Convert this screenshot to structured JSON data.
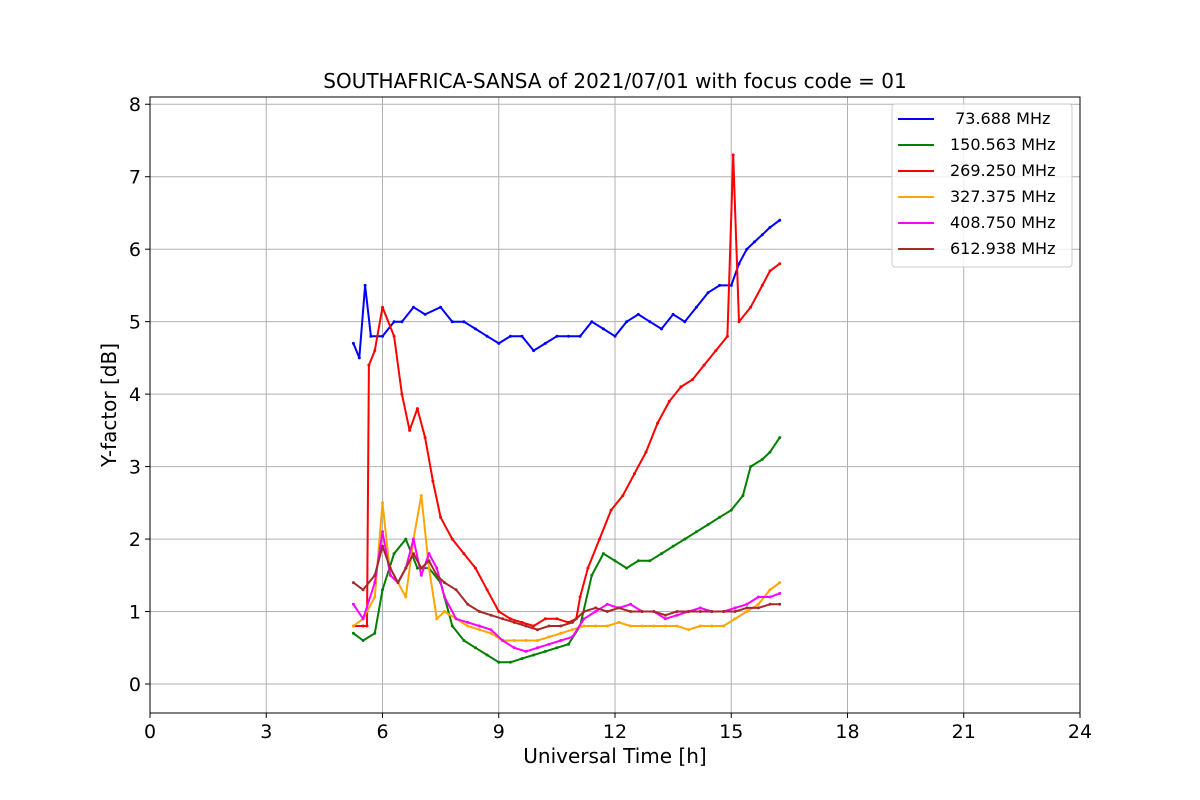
{
  "chart_data": {
    "type": "line",
    "title": "SOUTHAFRICA-SANSA of 2021/07/01 with focus code = 01",
    "xlabel": "Universal Time [h]",
    "ylabel": "Y-factor [dB]",
    "xlim": [
      0,
      24
    ],
    "ylim": [
      -0.4,
      8.1
    ],
    "xticks": [
      0,
      3,
      6,
      9,
      12,
      15,
      18,
      21,
      24
    ],
    "yticks": [
      0,
      1,
      2,
      3,
      4,
      5,
      6,
      7,
      8
    ],
    "grid": true,
    "legend_position": "top-right",
    "series": [
      {
        "name": " 73.688 MHz",
        "color": "#0000ff",
        "x": [
          5.25,
          5.4,
          5.55,
          5.7,
          6.0,
          6.3,
          6.5,
          6.8,
          7.1,
          7.5,
          7.8,
          8.1,
          8.4,
          8.7,
          9.0,
          9.3,
          9.6,
          9.9,
          10.2,
          10.5,
          10.8,
          11.1,
          11.4,
          11.7,
          12.0,
          12.3,
          12.6,
          12.9,
          13.2,
          13.5,
          13.8,
          14.1,
          14.4,
          14.7,
          15.0,
          15.2,
          15.4,
          15.6,
          15.8,
          16.0,
          16.25
        ],
        "y": [
          4.7,
          4.5,
          5.5,
          4.8,
          4.8,
          5.0,
          5.0,
          5.2,
          5.1,
          5.2,
          5.0,
          5.0,
          4.9,
          4.8,
          4.7,
          4.8,
          4.8,
          4.6,
          4.7,
          4.8,
          4.8,
          4.8,
          5.0,
          4.9,
          4.8,
          5.0,
          5.1,
          5.0,
          4.9,
          5.1,
          5.0,
          5.2,
          5.4,
          5.5,
          5.5,
          5.8,
          6.0,
          6.1,
          6.2,
          6.3,
          6.4
        ]
      },
      {
        "name": "150.563 MHz",
        "color": "#008000",
        "x": [
          5.25,
          5.5,
          5.8,
          6.0,
          6.3,
          6.6,
          6.9,
          7.2,
          7.5,
          7.8,
          8.1,
          8.4,
          8.7,
          9.0,
          9.3,
          9.6,
          9.9,
          10.2,
          10.5,
          10.8,
          11.1,
          11.4,
          11.7,
          12.0,
          12.3,
          12.6,
          12.9,
          13.2,
          13.5,
          13.8,
          14.1,
          14.4,
          14.7,
          15.0,
          15.3,
          15.5,
          15.8,
          16.0,
          16.25
        ],
        "y": [
          0.7,
          0.6,
          0.7,
          1.3,
          1.8,
          2.0,
          1.6,
          1.6,
          1.4,
          0.8,
          0.6,
          0.5,
          0.4,
          0.3,
          0.3,
          0.35,
          0.4,
          0.45,
          0.5,
          0.55,
          0.8,
          1.5,
          1.8,
          1.7,
          1.6,
          1.7,
          1.7,
          1.8,
          1.9,
          2.0,
          2.1,
          2.2,
          2.3,
          2.4,
          2.6,
          3.0,
          3.1,
          3.2,
          3.4
        ]
      },
      {
        "name": "269.250 MHz",
        "color": "#ff0000",
        "x": [
          5.25,
          5.5,
          5.6,
          5.65,
          5.8,
          6.0,
          6.3,
          6.5,
          6.7,
          6.9,
          7.1,
          7.3,
          7.5,
          7.8,
          8.1,
          8.4,
          8.7,
          9.0,
          9.3,
          9.6,
          9.9,
          10.2,
          10.5,
          10.8,
          11.0,
          11.1,
          11.3,
          11.6,
          11.9,
          12.2,
          12.5,
          12.8,
          13.1,
          13.4,
          13.7,
          14.0,
          14.3,
          14.6,
          14.9,
          15.05,
          15.2,
          15.5,
          15.8,
          16.0,
          16.25
        ],
        "y": [
          0.8,
          0.8,
          0.8,
          4.4,
          4.6,
          5.2,
          4.8,
          4.0,
          3.5,
          3.8,
          3.4,
          2.8,
          2.3,
          2.0,
          1.8,
          1.6,
          1.3,
          1.0,
          0.9,
          0.85,
          0.8,
          0.9,
          0.9,
          0.85,
          0.9,
          1.2,
          1.6,
          2.0,
          2.4,
          2.6,
          2.9,
          3.2,
          3.6,
          3.9,
          4.1,
          4.2,
          4.4,
          4.6,
          4.8,
          7.3,
          5.0,
          5.2,
          5.5,
          5.7,
          5.8
        ]
      },
      {
        "name": "327.375 MHz",
        "color": "#ffa500",
        "x": [
          5.25,
          5.5,
          5.8,
          6.0,
          6.2,
          6.4,
          6.6,
          6.8,
          7.0,
          7.2,
          7.4,
          7.6,
          7.9,
          8.2,
          8.5,
          8.8,
          9.1,
          9.4,
          9.7,
          10.0,
          10.3,
          10.6,
          10.9,
          11.2,
          11.5,
          11.8,
          12.1,
          12.4,
          12.7,
          13.0,
          13.3,
          13.6,
          13.9,
          14.2,
          14.5,
          14.8,
          15.1,
          15.4,
          15.7,
          16.0,
          16.25
        ],
        "y": [
          0.8,
          0.9,
          1.2,
          2.5,
          1.5,
          1.4,
          1.2,
          2.0,
          2.6,
          1.6,
          0.9,
          1.0,
          0.9,
          0.8,
          0.75,
          0.7,
          0.6,
          0.6,
          0.6,
          0.6,
          0.65,
          0.7,
          0.75,
          0.8,
          0.8,
          0.8,
          0.85,
          0.8,
          0.8,
          0.8,
          0.8,
          0.8,
          0.75,
          0.8,
          0.8,
          0.8,
          0.9,
          1.0,
          1.1,
          1.3,
          1.4
        ]
      },
      {
        "name": "408.750 MHz",
        "color": "#ff00ff",
        "x": [
          5.25,
          5.5,
          5.8,
          6.0,
          6.2,
          6.4,
          6.6,
          6.8,
          7.0,
          7.2,
          7.4,
          7.6,
          7.9,
          8.2,
          8.5,
          8.8,
          9.1,
          9.4,
          9.7,
          10.0,
          10.3,
          10.6,
          10.9,
          11.2,
          11.5,
          11.8,
          12.1,
          12.4,
          12.7,
          13.0,
          13.3,
          13.6,
          13.9,
          14.2,
          14.5,
          14.8,
          15.1,
          15.4,
          15.7,
          16.0,
          16.25
        ],
        "y": [
          1.1,
          0.9,
          1.4,
          2.1,
          1.5,
          1.4,
          1.6,
          2.0,
          1.5,
          1.8,
          1.6,
          1.2,
          0.9,
          0.85,
          0.8,
          0.75,
          0.6,
          0.5,
          0.45,
          0.5,
          0.55,
          0.6,
          0.65,
          0.9,
          1.0,
          1.1,
          1.05,
          1.1,
          1.0,
          1.0,
          0.9,
          0.95,
          1.0,
          1.05,
          1.0,
          1.0,
          1.05,
          1.1,
          1.2,
          1.2,
          1.25
        ]
      },
      {
        "name": "612.938 MHz",
        "color": "#a52a2a",
        "x": [
          5.25,
          5.5,
          5.8,
          6.0,
          6.2,
          6.4,
          6.6,
          6.8,
          7.0,
          7.2,
          7.4,
          7.6,
          7.9,
          8.2,
          8.5,
          8.8,
          9.1,
          9.4,
          9.7,
          10.0,
          10.3,
          10.6,
          10.9,
          11.2,
          11.5,
          11.8,
          12.1,
          12.4,
          12.7,
          13.0,
          13.3,
          13.6,
          13.9,
          14.2,
          14.5,
          14.8,
          15.1,
          15.4,
          15.7,
          16.0,
          16.25
        ],
        "y": [
          1.4,
          1.3,
          1.5,
          1.9,
          1.6,
          1.4,
          1.6,
          1.8,
          1.6,
          1.7,
          1.5,
          1.4,
          1.3,
          1.1,
          1.0,
          0.95,
          0.9,
          0.85,
          0.8,
          0.75,
          0.8,
          0.8,
          0.85,
          1.0,
          1.05,
          1.0,
          1.05,
          1.0,
          1.0,
          1.0,
          0.95,
          1.0,
          1.0,
          1.0,
          1.0,
          1.0,
          1.0,
          1.05,
          1.05,
          1.1,
          1.1
        ]
      }
    ]
  }
}
